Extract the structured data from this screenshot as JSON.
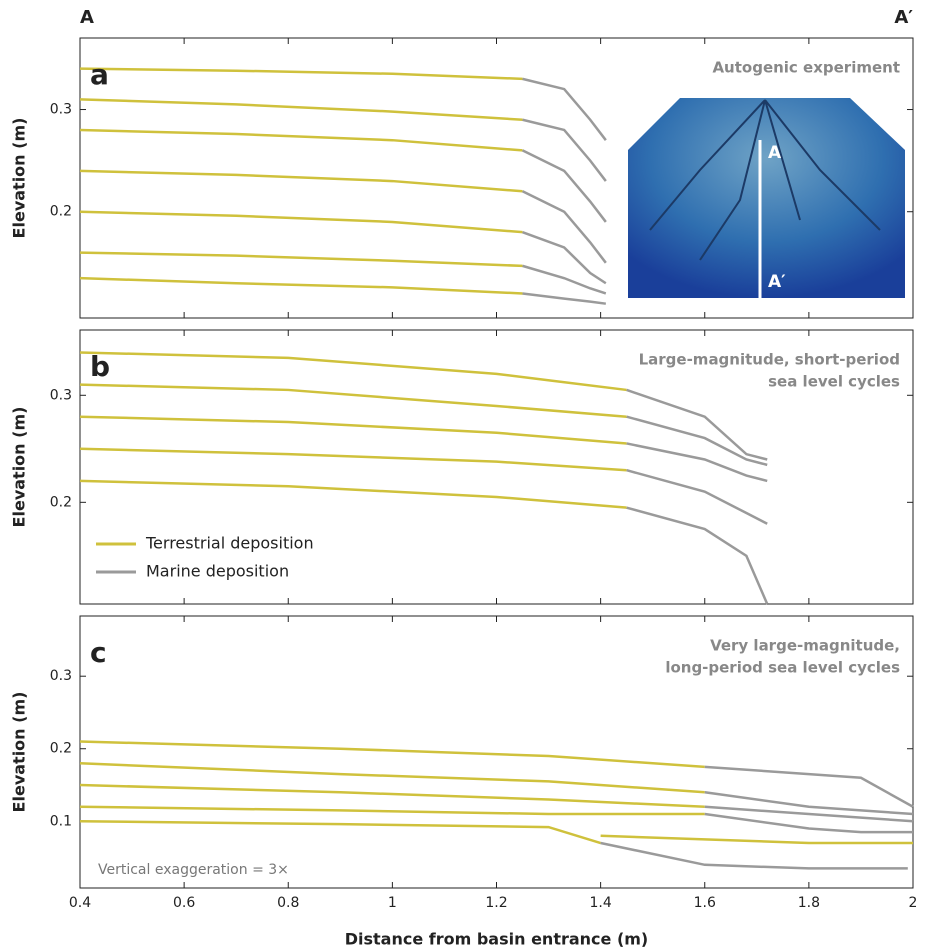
{
  "chart_data": [
    {
      "type": "line",
      "panel_label": "a",
      "section_labels": [
        "A",
        "A′"
      ],
      "annotation": [
        "Autogenic experiment"
      ],
      "inset_labels": [
        "A",
        "A′"
      ],
      "ylabel": "Elevation (m)",
      "xlim": [
        0.4,
        2.0
      ],
      "xticks": [
        0.4,
        0.6,
        0.8,
        1.0,
        1.2,
        1.4,
        1.6,
        1.8,
        2.0
      ],
      "ylim": [
        0.096,
        0.37
      ],
      "yticks": [
        0.2,
        0.3
      ],
      "series": [
        {
          "color": "#cfc13c",
          "x": [
            0.4,
            0.7,
            1.0,
            1.25
          ],
          "values": [
            0.34,
            0.338,
            0.335,
            0.33
          ]
        },
        {
          "color": "#9a9a9a",
          "x": [
            1.25,
            1.33,
            1.38,
            1.41
          ],
          "values": [
            0.33,
            0.32,
            0.29,
            0.27
          ]
        },
        {
          "color": "#cfc13c",
          "x": [
            0.4,
            0.7,
            1.0,
            1.25
          ],
          "values": [
            0.31,
            0.305,
            0.298,
            0.29
          ]
        },
        {
          "color": "#9a9a9a",
          "x": [
            1.25,
            1.33,
            1.38,
            1.41
          ],
          "values": [
            0.29,
            0.28,
            0.25,
            0.23
          ]
        },
        {
          "color": "#cfc13c",
          "x": [
            0.4,
            0.7,
            1.0,
            1.25
          ],
          "values": [
            0.28,
            0.276,
            0.27,
            0.26
          ]
        },
        {
          "color": "#9a9a9a",
          "x": [
            1.25,
            1.33,
            1.38,
            1.41
          ],
          "values": [
            0.26,
            0.24,
            0.21,
            0.19
          ]
        },
        {
          "color": "#cfc13c",
          "x": [
            0.4,
            0.7,
            1.0,
            1.25
          ],
          "values": [
            0.24,
            0.236,
            0.23,
            0.22
          ]
        },
        {
          "color": "#9a9a9a",
          "x": [
            1.25,
            1.33,
            1.38,
            1.41
          ],
          "values": [
            0.22,
            0.2,
            0.17,
            0.15
          ]
        },
        {
          "color": "#cfc13c",
          "x": [
            0.4,
            0.7,
            1.0,
            1.25
          ],
          "values": [
            0.2,
            0.196,
            0.19,
            0.18
          ]
        },
        {
          "color": "#9a9a9a",
          "x": [
            1.25,
            1.33,
            1.38,
            1.41
          ],
          "values": [
            0.18,
            0.165,
            0.14,
            0.13
          ]
        },
        {
          "color": "#cfc13c",
          "x": [
            0.4,
            0.7,
            1.0,
            1.25
          ],
          "values": [
            0.16,
            0.157,
            0.152,
            0.147
          ]
        },
        {
          "color": "#9a9a9a",
          "x": [
            1.25,
            1.33,
            1.38,
            1.41
          ],
          "values": [
            0.147,
            0.135,
            0.125,
            0.12
          ]
        },
        {
          "color": "#cfc13c",
          "x": [
            0.4,
            0.7,
            1.0,
            1.25
          ],
          "values": [
            0.135,
            0.13,
            0.126,
            0.12
          ]
        },
        {
          "color": "#9a9a9a",
          "x": [
            1.25,
            1.33,
            1.38,
            1.41
          ],
          "values": [
            0.12,
            0.115,
            0.112,
            0.11
          ]
        }
      ]
    },
    {
      "type": "line",
      "panel_label": "b",
      "annotation": [
        "Large-magnitude, short-period",
        "sea level cycles"
      ],
      "ylabel": "Elevation (m)",
      "xlim": [
        0.4,
        2.0
      ],
      "xticks": [
        0.4,
        0.6,
        0.8,
        1.0,
        1.2,
        1.4,
        1.6,
        1.8,
        2.0
      ],
      "ylim": [
        0.105,
        0.361
      ],
      "yticks": [
        0.2,
        0.3
      ],
      "legend": "lower left",
      "series": [
        {
          "name": "Terrestrial deposition",
          "color": "#cfc13c",
          "x": [
            0.4,
            0.8,
            1.2,
            1.45
          ],
          "values": [
            0.34,
            0.335,
            0.32,
            0.305
          ]
        },
        {
          "name": "Marine deposition",
          "color": "#9a9a9a",
          "x": [
            1.45,
            1.6,
            1.68,
            1.72
          ],
          "values": [
            0.305,
            0.28,
            0.245,
            0.24
          ]
        },
        {
          "color": "#cfc13c",
          "x": [
            0.4,
            0.8,
            1.2,
            1.45
          ],
          "values": [
            0.31,
            0.305,
            0.29,
            0.28
          ]
        },
        {
          "color": "#9a9a9a",
          "x": [
            1.45,
            1.6,
            1.68,
            1.72
          ],
          "values": [
            0.28,
            0.26,
            0.24,
            0.235
          ]
        },
        {
          "color": "#cfc13c",
          "x": [
            0.4,
            0.8,
            1.2,
            1.45
          ],
          "values": [
            0.28,
            0.275,
            0.265,
            0.255
          ]
        },
        {
          "color": "#9a9a9a",
          "x": [
            1.45,
            1.6,
            1.68,
            1.72
          ],
          "values": [
            0.255,
            0.24,
            0.225,
            0.22
          ]
        },
        {
          "color": "#cfc13c",
          "x": [
            0.4,
            0.8,
            1.2,
            1.45
          ],
          "values": [
            0.25,
            0.245,
            0.238,
            0.23
          ]
        },
        {
          "color": "#9a9a9a",
          "x": [
            1.45,
            1.6,
            1.68,
            1.72
          ],
          "values": [
            0.23,
            0.21,
            0.19,
            0.18
          ]
        },
        {
          "color": "#cfc13c",
          "x": [
            0.4,
            0.8,
            1.2,
            1.45
          ],
          "values": [
            0.22,
            0.215,
            0.205,
            0.195
          ]
        },
        {
          "color": "#9a9a9a",
          "x": [
            1.45,
            1.6,
            1.68,
            1.72
          ],
          "values": [
            0.195,
            0.175,
            0.15,
            0.105
          ]
        }
      ]
    },
    {
      "type": "line",
      "panel_label": "c",
      "annotation": [
        "Very large-magnitude,",
        "long-period sea level cycles"
      ],
      "note": "Vertical exaggeration = 3×",
      "ylabel": "Elevation (m)",
      "xlabel": "Distance from basin entrance (m)",
      "xlim": [
        0.4,
        2.0
      ],
      "xticks": [
        0.4,
        0.6,
        0.8,
        1.0,
        1.2,
        1.4,
        1.6,
        1.8,
        2.0
      ],
      "ylim": [
        0.008,
        0.383
      ],
      "yticks": [
        0.1,
        0.2,
        0.3
      ],
      "series": [
        {
          "color": "#cfc13c",
          "x": [
            0.4,
            0.9,
            1.3,
            1.6
          ],
          "values": [
            0.21,
            0.2,
            0.19,
            0.175
          ]
        },
        {
          "color": "#9a9a9a",
          "x": [
            1.6,
            1.8,
            1.9,
            2.0
          ],
          "values": [
            0.175,
            0.165,
            0.16,
            0.12
          ]
        },
        {
          "color": "#cfc13c",
          "x": [
            0.4,
            0.9,
            1.3,
            1.6
          ],
          "values": [
            0.18,
            0.165,
            0.155,
            0.14
          ]
        },
        {
          "color": "#9a9a9a",
          "x": [
            1.6,
            1.8,
            1.9,
            2.0
          ],
          "values": [
            0.14,
            0.12,
            0.115,
            0.11
          ]
        },
        {
          "color": "#cfc13c",
          "x": [
            0.4,
            0.9,
            1.3,
            1.6
          ],
          "values": [
            0.15,
            0.14,
            0.13,
            0.12
          ]
        },
        {
          "color": "#9a9a9a",
          "x": [
            1.6,
            1.8,
            1.9,
            2.0
          ],
          "values": [
            0.12,
            0.11,
            0.105,
            0.1
          ]
        },
        {
          "color": "#cfc13c",
          "x": [
            0.4,
            0.9,
            1.3,
            1.6
          ],
          "values": [
            0.12,
            0.115,
            0.11,
            0.11
          ]
        },
        {
          "color": "#9a9a9a",
          "x": [
            1.6,
            1.8,
            1.9,
            2.0
          ],
          "values": [
            0.11,
            0.09,
            0.085,
            0.085
          ]
        },
        {
          "color": "#cfc13c",
          "x": [
            0.4,
            0.9,
            1.3,
            1.4
          ],
          "values": [
            0.1,
            0.096,
            0.092,
            0.07
          ]
        },
        {
          "color": "#9a9a9a",
          "x": [
            1.4,
            1.6,
            1.8,
            1.99
          ],
          "values": [
            0.07,
            0.04,
            0.035,
            0.035
          ]
        },
        {
          "color": "#cfc13c",
          "x": [
            1.4,
            1.6,
            1.8,
            2.0
          ],
          "values": [
            0.08,
            0.075,
            0.07,
            0.07
          ]
        }
      ]
    }
  ]
}
